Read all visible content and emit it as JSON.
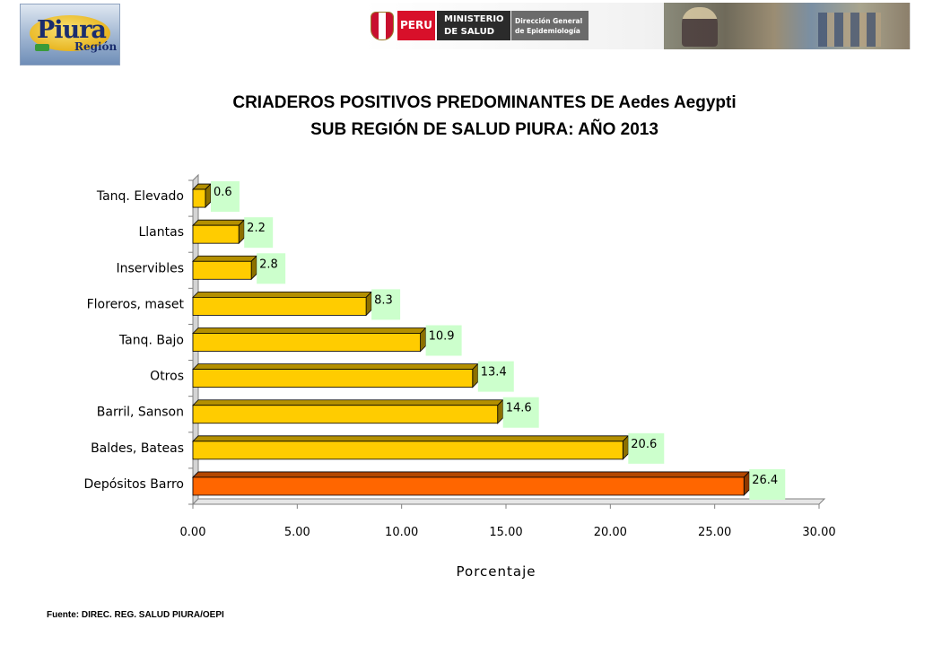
{
  "header": {
    "logo_text": "Piura",
    "logo_subtext": "Región",
    "peru_label": "PERU",
    "ministry_line1": "MINISTERIO",
    "ministry_line2": "DE SALUD",
    "directorate_line1": "Dirección General",
    "directorate_line2": "de Epidemiología"
  },
  "chart_data": {
    "type": "bar",
    "orientation": "horizontal",
    "title": "CRIADEROS POSITIVOS PREDOMINANTES DE Aedes Aegypti",
    "subtitle": "SUB REGIÓN DE SALUD PIURA: AÑO 2013",
    "xlabel": "Porcentaje",
    "ylabel": "",
    "categories": [
      "Tanq. Elevado",
      "Llantas",
      "Inservibles",
      "Floreros, maset",
      "Tanq. Bajo",
      "Otros",
      "Barril, Sanson",
      "Baldes, Bateas",
      "Depósitos Barro"
    ],
    "values": [
      0.6,
      2.2,
      2.8,
      8.3,
      10.9,
      13.4,
      14.6,
      20.6,
      26.4
    ],
    "data_labels": [
      "0.6",
      "2.2",
      "2.8",
      "8.3",
      "10.9",
      "13.4",
      "14.6",
      "20.6",
      "26.4"
    ],
    "xlim": [
      0,
      30
    ],
    "xticks": [
      "0.00",
      "5.00",
      "10.00",
      "15.00",
      "20.00",
      "25.00",
      "30.00"
    ],
    "grid": false,
    "legend": "none",
    "bar_color": "#ffcc00",
    "highlight_color": "#ff6600",
    "highlight_category": "Depósitos Barro",
    "label_bg_color": "#ccffcc"
  },
  "footer": {
    "source": "Fuente: DIREC. REG. SALUD PIURA/OEPI"
  }
}
